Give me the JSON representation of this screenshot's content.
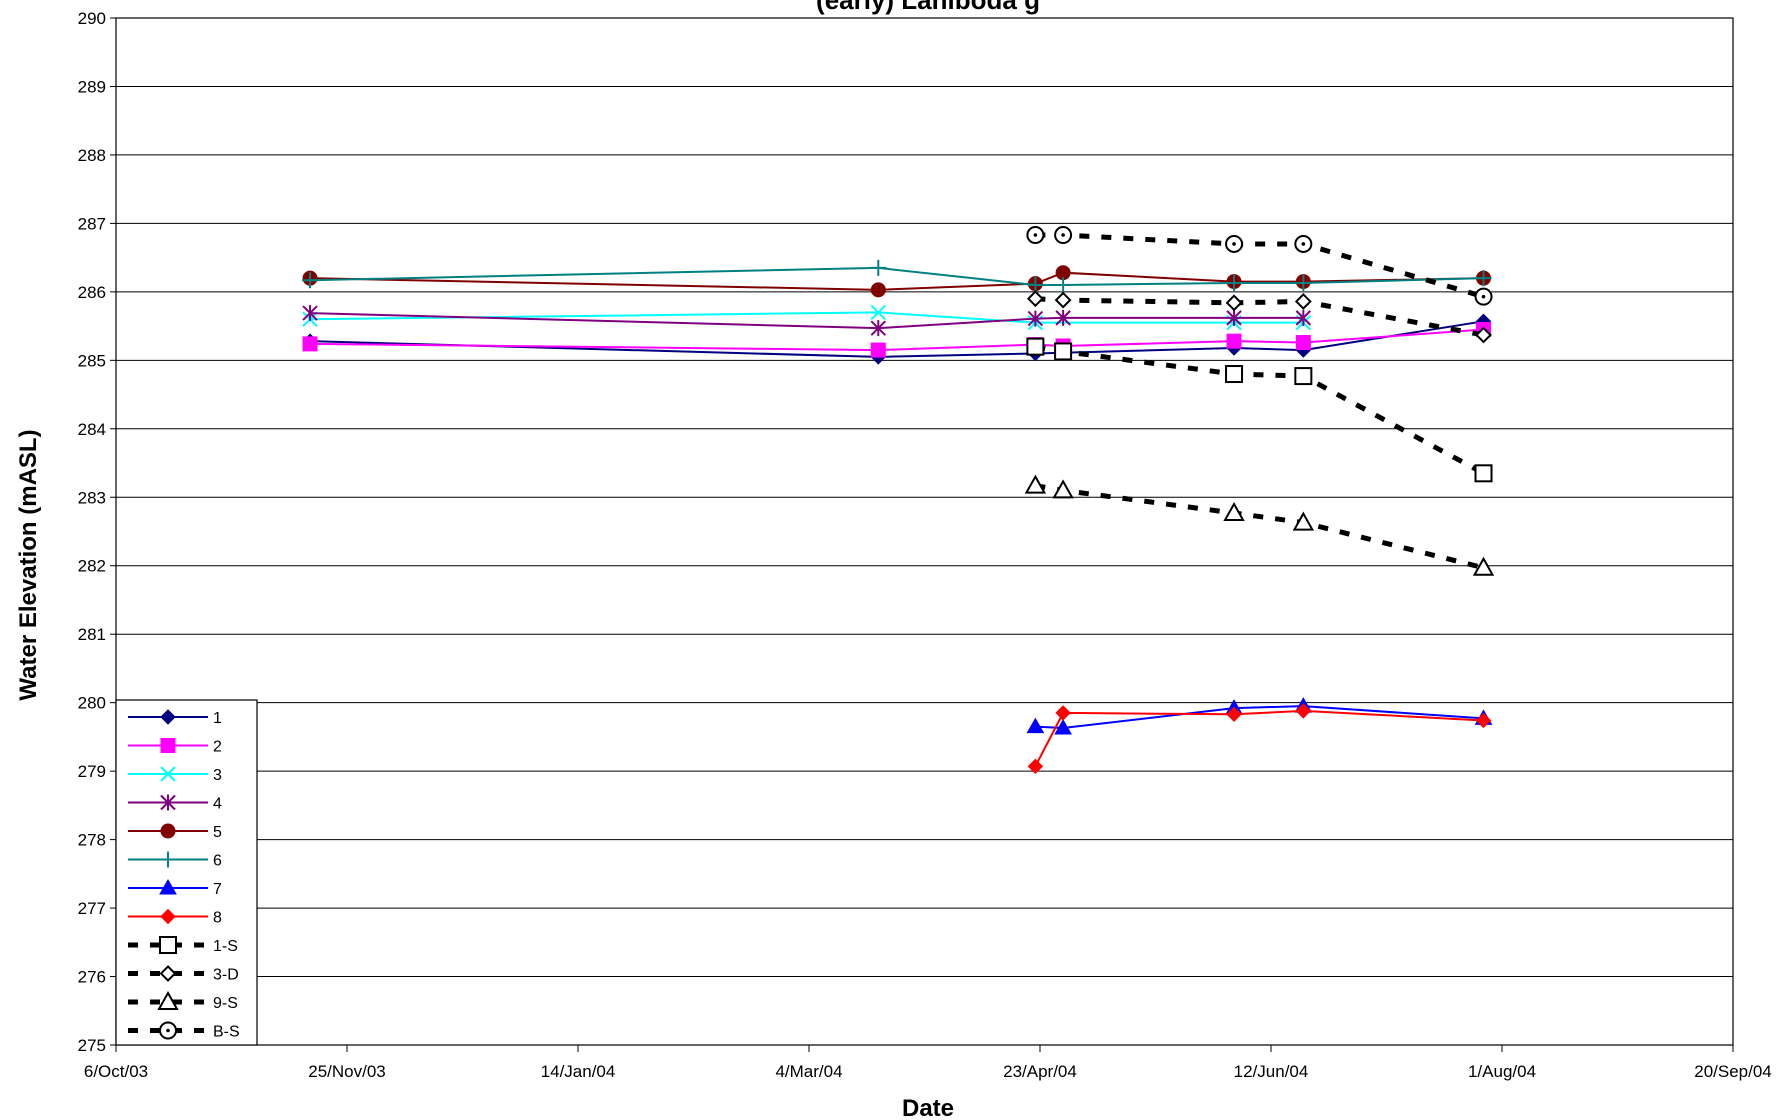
{
  "chart_data": {
    "type": "line",
    "title": "(early) Laniboda g",
    "xlabel": "Date",
    "ylabel": "Water Elevation (mASL)",
    "ylim": [
      275,
      290
    ],
    "yticks": [
      "275",
      "276",
      "277",
      "278",
      "279",
      "280",
      "281",
      "282",
      "283",
      "284",
      "285",
      "286",
      "287",
      "288",
      "289",
      "290"
    ],
    "xlim": [
      "2003-10-06",
      "2004-09-20"
    ],
    "xticks": [
      {
        "date": "2003-10-06",
        "label": "6/Oct/03"
      },
      {
        "date": "2003-11-25",
        "label": "25/Nov/03"
      },
      {
        "date": "2004-01-14",
        "label": "14/Jan/04"
      },
      {
        "date": "2004-03-04",
        "label": "4/Mar/04"
      },
      {
        "date": "2004-04-23",
        "label": "23/Apr/04"
      },
      {
        "date": "2004-06-12",
        "label": "12/Jun/04"
      },
      {
        "date": "2004-08-01",
        "label": "1/Aug/04"
      },
      {
        "date": "2004-09-20",
        "label": "20/Sep/04"
      }
    ],
    "grid": "horizontal",
    "legend_position": "bottom-left",
    "series": [
      {
        "name": "1",
        "color": "#000080",
        "marker": "diamond-filled",
        "dash": "solid",
        "points": [
          [
            "2003-11-17",
            285.28
          ],
          [
            "2004-03-19",
            285.05
          ],
          [
            "2004-04-22",
            285.1
          ],
          [
            "2004-06-04",
            285.18
          ],
          [
            "2004-06-19",
            285.15
          ],
          [
            "2004-07-28",
            285.57
          ]
        ]
      },
      {
        "name": "2",
        "color": "#FF00FF",
        "marker": "square-filled",
        "dash": "solid",
        "points": [
          [
            "2003-11-17",
            285.24
          ],
          [
            "2004-03-19",
            285.15
          ],
          [
            "2004-04-22",
            285.23
          ],
          [
            "2004-04-28",
            285.21
          ],
          [
            "2004-06-04",
            285.28
          ],
          [
            "2004-06-19",
            285.26
          ],
          [
            "2004-07-28",
            285.45
          ]
        ]
      },
      {
        "name": "3",
        "color": "#00FFFF",
        "marker": "x",
        "dash": "solid",
        "points": [
          [
            "2003-11-17",
            285.6
          ],
          [
            "2004-03-19",
            285.7
          ],
          [
            "2004-04-22",
            285.55
          ],
          [
            "2004-06-04",
            285.55
          ],
          [
            "2004-06-19",
            285.55
          ]
        ]
      },
      {
        "name": "4",
        "color": "#800080",
        "marker": "star",
        "dash": "solid",
        "points": [
          [
            "2003-11-17",
            285.69
          ],
          [
            "2004-03-19",
            285.47
          ],
          [
            "2004-04-22",
            285.61
          ],
          [
            "2004-04-28",
            285.62
          ],
          [
            "2004-06-04",
            285.62
          ],
          [
            "2004-06-19",
            285.62
          ]
        ]
      },
      {
        "name": "5",
        "color": "#800000",
        "marker": "circle-filled",
        "dash": "solid",
        "points": [
          [
            "2003-11-17",
            286.2
          ],
          [
            "2004-03-19",
            286.03
          ],
          [
            "2004-04-22",
            286.12
          ],
          [
            "2004-04-28",
            286.28
          ],
          [
            "2004-06-04",
            286.15
          ],
          [
            "2004-06-19",
            286.15
          ],
          [
            "2004-07-28",
            286.2
          ]
        ]
      },
      {
        "name": "6",
        "color": "#008080",
        "marker": "plus",
        "dash": "solid",
        "points": [
          [
            "2003-11-17",
            286.17
          ],
          [
            "2004-03-19",
            286.35
          ],
          [
            "2004-04-22",
            286.1
          ],
          [
            "2004-04-28",
            286.1
          ],
          [
            "2004-06-04",
            286.13
          ],
          [
            "2004-06-19",
            286.13
          ],
          [
            "2004-07-28",
            286.2
          ]
        ]
      },
      {
        "name": "7",
        "color": "#0000FF",
        "marker": "triangle-filled",
        "dash": "solid",
        "points": [
          [
            "2004-04-22",
            279.65
          ],
          [
            "2004-04-28",
            279.63
          ],
          [
            "2004-06-04",
            279.92
          ],
          [
            "2004-06-19",
            279.95
          ],
          [
            "2004-07-28",
            279.77
          ]
        ]
      },
      {
        "name": "8",
        "color": "#FF0000",
        "marker": "diamond-filled",
        "dash": "solid",
        "points": [
          [
            "2004-04-22",
            279.07
          ],
          [
            "2004-04-28",
            279.85
          ],
          [
            "2004-06-04",
            279.83
          ],
          [
            "2004-06-19",
            279.88
          ],
          [
            "2004-07-28",
            279.74
          ]
        ]
      },
      {
        "name": "1-S",
        "color": "#000000",
        "marker": "square-open",
        "dash": "dashed",
        "points": [
          [
            "2004-04-22",
            285.2
          ],
          [
            "2004-04-28",
            285.13
          ],
          [
            "2004-06-04",
            284.8
          ],
          [
            "2004-06-19",
            284.77
          ],
          [
            "2004-07-28",
            283.35
          ]
        ]
      },
      {
        "name": "3-D",
        "color": "#000000",
        "marker": "diamond-open",
        "dash": "dashed",
        "points": [
          [
            "2004-04-22",
            285.9
          ],
          [
            "2004-04-28",
            285.88
          ],
          [
            "2004-06-04",
            285.84
          ],
          [
            "2004-06-19",
            285.86
          ],
          [
            "2004-07-28",
            285.37
          ]
        ]
      },
      {
        "name": "9-S",
        "color": "#000000",
        "marker": "triangle-open",
        "dash": "dashed",
        "points": [
          [
            "2004-04-22",
            283.17
          ],
          [
            "2004-04-28",
            283.1
          ],
          [
            "2004-06-04",
            282.77
          ],
          [
            "2004-06-19",
            282.63
          ],
          [
            "2004-07-28",
            281.97
          ]
        ]
      },
      {
        "name": "B-S",
        "color": "#000000",
        "marker": "circle-open",
        "dash": "dashed",
        "points": [
          [
            "2004-04-22",
            286.83
          ],
          [
            "2004-04-28",
            286.83
          ],
          [
            "2004-06-04",
            286.7
          ],
          [
            "2004-06-19",
            286.7
          ],
          [
            "2004-07-28",
            285.93
          ]
        ]
      }
    ]
  }
}
